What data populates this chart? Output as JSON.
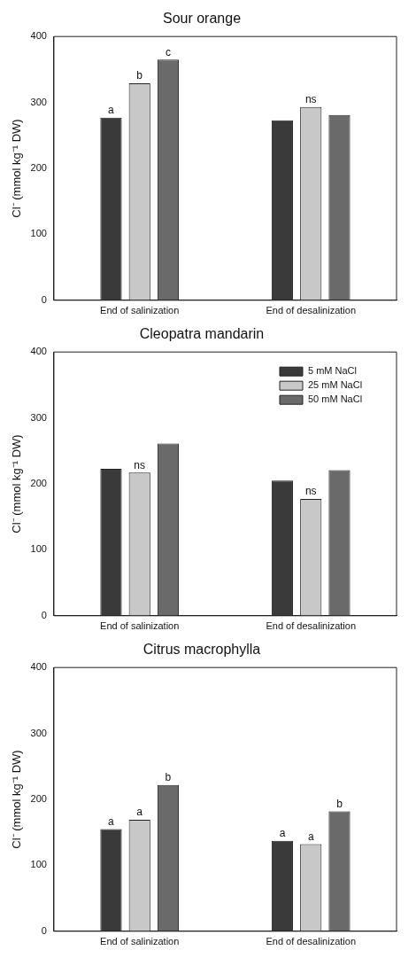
{
  "chart_data": [
    {
      "type": "bar",
      "title": "Sour orange",
      "ylabel": "Cl⁻ (mmol kg⁻¹ DW)",
      "categories": [
        "End of salinization",
        "End of desalinization"
      ],
      "ylim": [
        0,
        400
      ],
      "yticks": [
        0,
        100,
        200,
        300,
        400
      ],
      "grid": false,
      "legend": false,
      "series": [
        {
          "color": "#3a3a3a",
          "values": [
            277,
            273
          ],
          "value_labels": [
            "a",
            null
          ]
        },
        {
          "color": "#c8c8c8",
          "values": [
            329,
            293
          ],
          "value_labels": [
            "b",
            "ns"
          ]
        },
        {
          "color": "#6a6a6a",
          "values": [
            365,
            281
          ],
          "value_labels": [
            "c",
            null
          ]
        }
      ]
    },
    {
      "type": "bar",
      "title": "Cleopatra mandarin",
      "ylabel": "Cl⁻ (mmol kg⁻¹ DW)",
      "categories": [
        "End of salinization",
        "End of desalinization"
      ],
      "ylim": [
        0,
        400
      ],
      "yticks": [
        0,
        100,
        200,
        300,
        400
      ],
      "grid": false,
      "legend": "top right",
      "series": [
        {
          "name": "5 mM NaCl",
          "color": "#3a3a3a",
          "values": [
            223,
            205
          ]
        },
        {
          "name": "25 mM NaCl",
          "color": "#c8c8c8",
          "values": [
            217,
            177
          ],
          "value_labels": [
            "ns",
            "ns"
          ]
        },
        {
          "name": "50 mM NaCl",
          "color": "#6a6a6a",
          "values": [
            261,
            221
          ]
        }
      ]
    },
    {
      "type": "bar",
      "title": "Citrus macrophylla",
      "ylabel": "Cl⁻ (mmol kg⁻¹ DW)",
      "categories": [
        "End of salinization",
        "End of desalinization"
      ],
      "ylim": [
        0,
        400
      ],
      "yticks": [
        0,
        100,
        200,
        300,
        400
      ],
      "grid": false,
      "legend": false,
      "series": [
        {
          "color": "#3a3a3a",
          "values": [
            155,
            137
          ],
          "value_labels": [
            "a",
            "a"
          ]
        },
        {
          "color": "#c8c8c8",
          "values": [
            169,
            132
          ],
          "value_labels": [
            "a",
            "a"
          ]
        },
        {
          "color": "#6a6a6a",
          "values": [
            222,
            182
          ],
          "value_labels": [
            "b",
            "b"
          ]
        }
      ]
    }
  ]
}
